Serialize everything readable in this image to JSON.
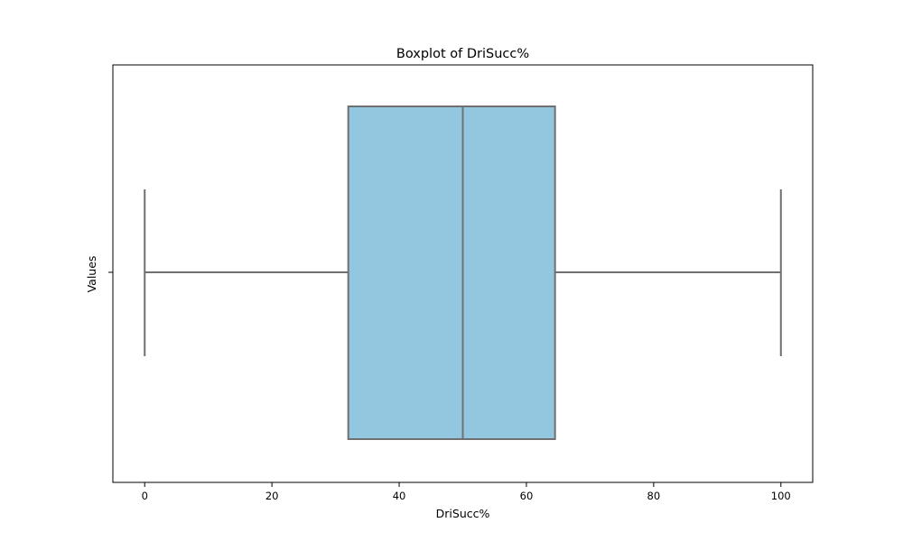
{
  "chart_data": {
    "type": "boxplot",
    "title": "Boxplot of DriSucc%",
    "xlabel": "DriSucc%",
    "ylabel": "Values",
    "orientation": "horizontal",
    "xlim": [
      -5,
      105
    ],
    "xticks": [
      0,
      20,
      40,
      60,
      80,
      100
    ],
    "grid": false,
    "series": [
      {
        "min": 0,
        "q1": 32,
        "median": 50,
        "q3": 64.5,
        "max": 100
      }
    ],
    "colors": {
      "box_fill": "#93c7df",
      "line": "#707070",
      "axis": "#000000"
    }
  }
}
